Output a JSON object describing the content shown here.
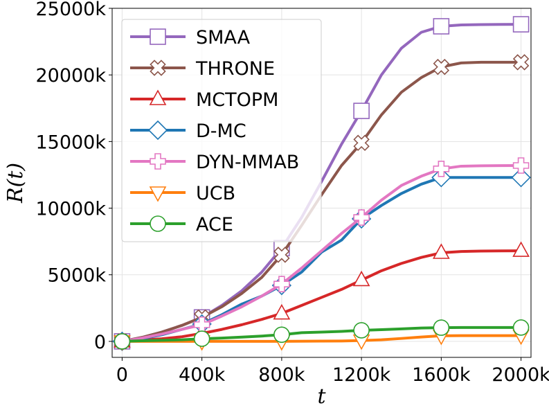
{
  "chart_data": {
    "type": "line",
    "xlabel": "t",
    "ylabel": "R(t)",
    "xlim": [
      -50000,
      2050000
    ],
    "ylim": [
      -1200000,
      25000000
    ],
    "xticks": [
      {
        "value": 0,
        "label": "0"
      },
      {
        "value": 400000,
        "label": "400k"
      },
      {
        "value": 800000,
        "label": "800k"
      },
      {
        "value": 1200000,
        "label": "1200k"
      },
      {
        "value": 1600000,
        "label": "1600k"
      },
      {
        "value": 2000000,
        "label": "2000k"
      }
    ],
    "yticks": [
      {
        "value": 0,
        "label": "0"
      },
      {
        "value": 5000000,
        "label": "5000k"
      },
      {
        "value": 10000000,
        "label": "10000k"
      },
      {
        "value": 15000000,
        "label": "15000k"
      },
      {
        "value": 20000000,
        "label": "20000k"
      },
      {
        "value": 25000000,
        "label": "25000k"
      }
    ],
    "grid": true,
    "legend_position": "top-left",
    "series": [
      {
        "name": "SMAA",
        "color": "#9467bd",
        "marker": "square",
        "x": [
          0,
          100000,
          200000,
          300000,
          400000,
          500000,
          600000,
          700000,
          800000,
          900000,
          1000000,
          1100000,
          1200000,
          1300000,
          1400000,
          1500000,
          1600000,
          1700000,
          1800000,
          1900000,
          2000000
        ],
        "y": [
          0,
          300000,
          700000,
          1200000,
          1800000,
          2700000,
          3800000,
          5200000,
          7000000,
          9300000,
          12000000,
          14800000,
          17300000,
          20000000,
          22000000,
          23200000,
          23650000,
          23750000,
          23780000,
          23790000,
          23800000
        ],
        "marker_x": [
          0,
          400000,
          800000,
          1200000,
          1600000,
          2000000
        ]
      },
      {
        "name": "THRONE",
        "color": "#8c564b",
        "marker": "x-filled",
        "x": [
          0,
          100000,
          200000,
          300000,
          400000,
          500000,
          600000,
          700000,
          800000,
          900000,
          1000000,
          1100000,
          1200000,
          1300000,
          1400000,
          1500000,
          1600000,
          1700000,
          1800000,
          1900000,
          2000000
        ],
        "y": [
          0,
          300000,
          700000,
          1200000,
          1800000,
          2600000,
          3600000,
          4800000,
          6500000,
          8700000,
          11000000,
          13200000,
          14900000,
          17000000,
          18700000,
          19800000,
          20600000,
          20900000,
          20950000,
          20950000,
          20950000
        ],
        "marker_x": [
          0,
          400000,
          800000,
          1200000,
          1600000,
          2000000
        ]
      },
      {
        "name": "MCTOPM",
        "color": "#d62728",
        "marker": "triangle-up",
        "x": [
          0,
          100000,
          200000,
          300000,
          400000,
          500000,
          600000,
          700000,
          800000,
          900000,
          1000000,
          1100000,
          1200000,
          1300000,
          1400000,
          1500000,
          1600000,
          1700000,
          1800000,
          1900000,
          2000000
        ],
        "y": [
          0,
          100000,
          200000,
          350000,
          600000,
          900000,
          1250000,
          1650000,
          2100000,
          2700000,
          3300000,
          3900000,
          4600000,
          5300000,
          5850000,
          6300000,
          6650000,
          6750000,
          6780000,
          6790000,
          6800000
        ],
        "marker_x": [
          0,
          400000,
          800000,
          1200000,
          1600000,
          2000000
        ]
      },
      {
        "name": "D-MC",
        "color": "#1f77b4",
        "marker": "diamond",
        "x": [
          0,
          100000,
          200000,
          300000,
          400000,
          500000,
          600000,
          700000,
          800000,
          900000,
          1000000,
          1100000,
          1200000,
          1300000,
          1400000,
          1500000,
          1600000,
          1700000,
          1800000,
          1900000,
          2000000
        ],
        "y": [
          0,
          200000,
          500000,
          900000,
          1300000,
          2000000,
          2800000,
          3400000,
          4200000,
          5200000,
          6700000,
          7600000,
          9200000,
          10200000,
          11100000,
          11800000,
          12300000,
          12300000,
          12300000,
          12300000,
          12300000
        ],
        "marker_x": [
          0,
          400000,
          800000,
          1200000,
          1600000,
          2000000
        ]
      },
      {
        "name": "DYN-MMAB",
        "color": "#e377c2",
        "marker": "plus-filled",
        "x": [
          0,
          100000,
          200000,
          300000,
          400000,
          500000,
          600000,
          700000,
          800000,
          900000,
          1000000,
          1100000,
          1200000,
          1300000,
          1400000,
          1500000,
          1600000,
          1700000,
          1800000,
          1900000,
          2000000
        ],
        "y": [
          0,
          250000,
          550000,
          900000,
          1250000,
          1900000,
          2600000,
          3400000,
          4300000,
          5500000,
          6800000,
          8100000,
          9300000,
          10600000,
          11700000,
          12400000,
          12950000,
          13150000,
          13180000,
          13190000,
          13200000
        ],
        "marker_x": [
          0,
          400000,
          800000,
          1200000,
          1600000,
          2000000
        ]
      },
      {
        "name": "UCB",
        "color": "#ff7f0e",
        "marker": "triangle-down",
        "x": [
          0,
          200000,
          400000,
          600000,
          800000,
          1000000,
          1100000,
          1200000,
          1300000,
          1400000,
          1500000,
          1600000,
          1700000,
          1800000,
          2000000
        ],
        "y": [
          0,
          0,
          0,
          0,
          0,
          20000,
          30000,
          60000,
          120000,
          220000,
          330000,
          420000,
          430000,
          430000,
          430000
        ],
        "marker_x": [
          0,
          400000,
          800000,
          1200000,
          1600000,
          2000000
        ]
      },
      {
        "name": "ACE",
        "color": "#2ca02c",
        "marker": "circle",
        "x": [
          0,
          100000,
          200000,
          300000,
          400000,
          500000,
          600000,
          700000,
          800000,
          900000,
          1000000,
          1100000,
          1200000,
          1300000,
          1400000,
          1500000,
          1600000,
          1700000,
          1800000,
          1900000,
          2000000
        ],
        "y": [
          0,
          50000,
          80000,
          120000,
          200000,
          250000,
          320000,
          400000,
          500000,
          650000,
          700000,
          750000,
          830000,
          880000,
          940000,
          1000000,
          1030000,
          1040000,
          1040000,
          1040000,
          1040000
        ],
        "marker_x": [
          0,
          400000,
          800000,
          1200000,
          1600000,
          2000000
        ]
      }
    ]
  }
}
